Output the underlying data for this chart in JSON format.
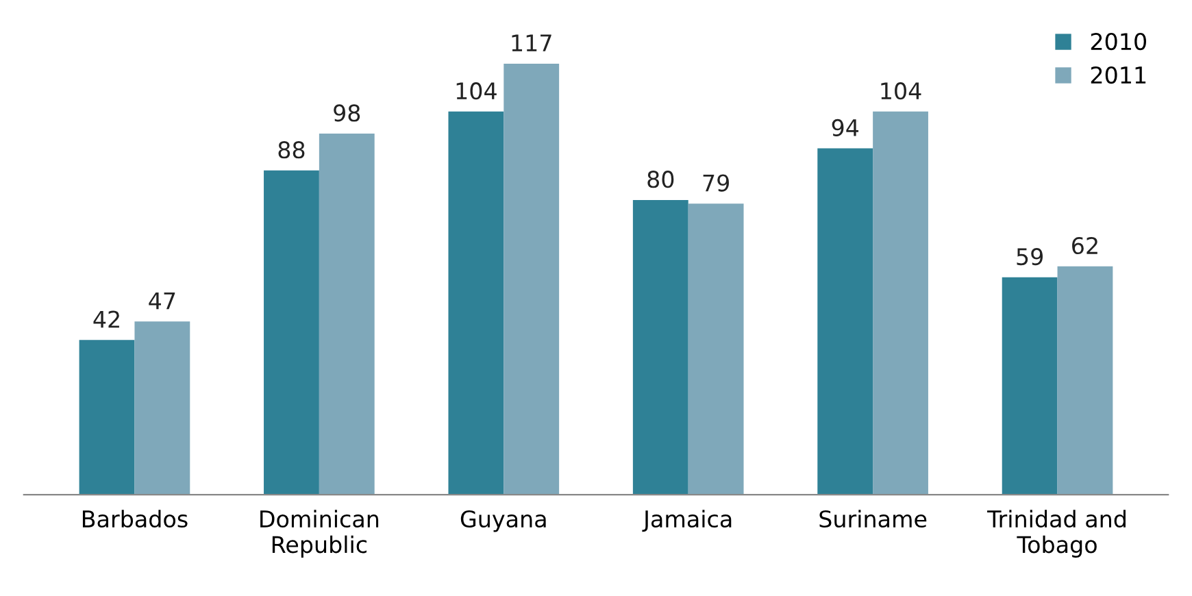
{
  "chart_data": {
    "type": "bar",
    "categories": [
      "Barbados",
      "Dominican Republic",
      "Guyana",
      "Jamaica",
      "Suriname",
      "Trinidad and Tobago"
    ],
    "series": [
      {
        "name": "2010",
        "color": "#2f8196",
        "values": [
          42,
          88,
          104,
          80,
          94,
          59
        ]
      },
      {
        "name": "2011",
        "color": "#7fa8ba",
        "values": [
          47,
          98,
          117,
          79,
          104,
          62
        ]
      }
    ],
    "data_labels": true,
    "legend": "top right",
    "grid": false
  }
}
